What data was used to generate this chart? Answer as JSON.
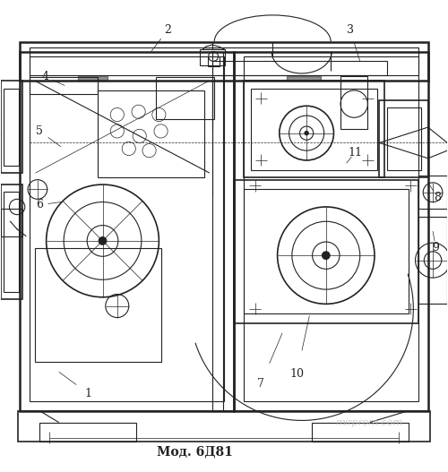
{
  "title": "Мод. 6Д81",
  "watermark": "mirprom.com",
  "bg_color": "#ffffff",
  "line_color": "#222222",
  "label_color": "#222222",
  "watermark_color": "#bbbbbb",
  "fig_width": 5.0,
  "fig_height": 5.27,
  "dpi": 100
}
